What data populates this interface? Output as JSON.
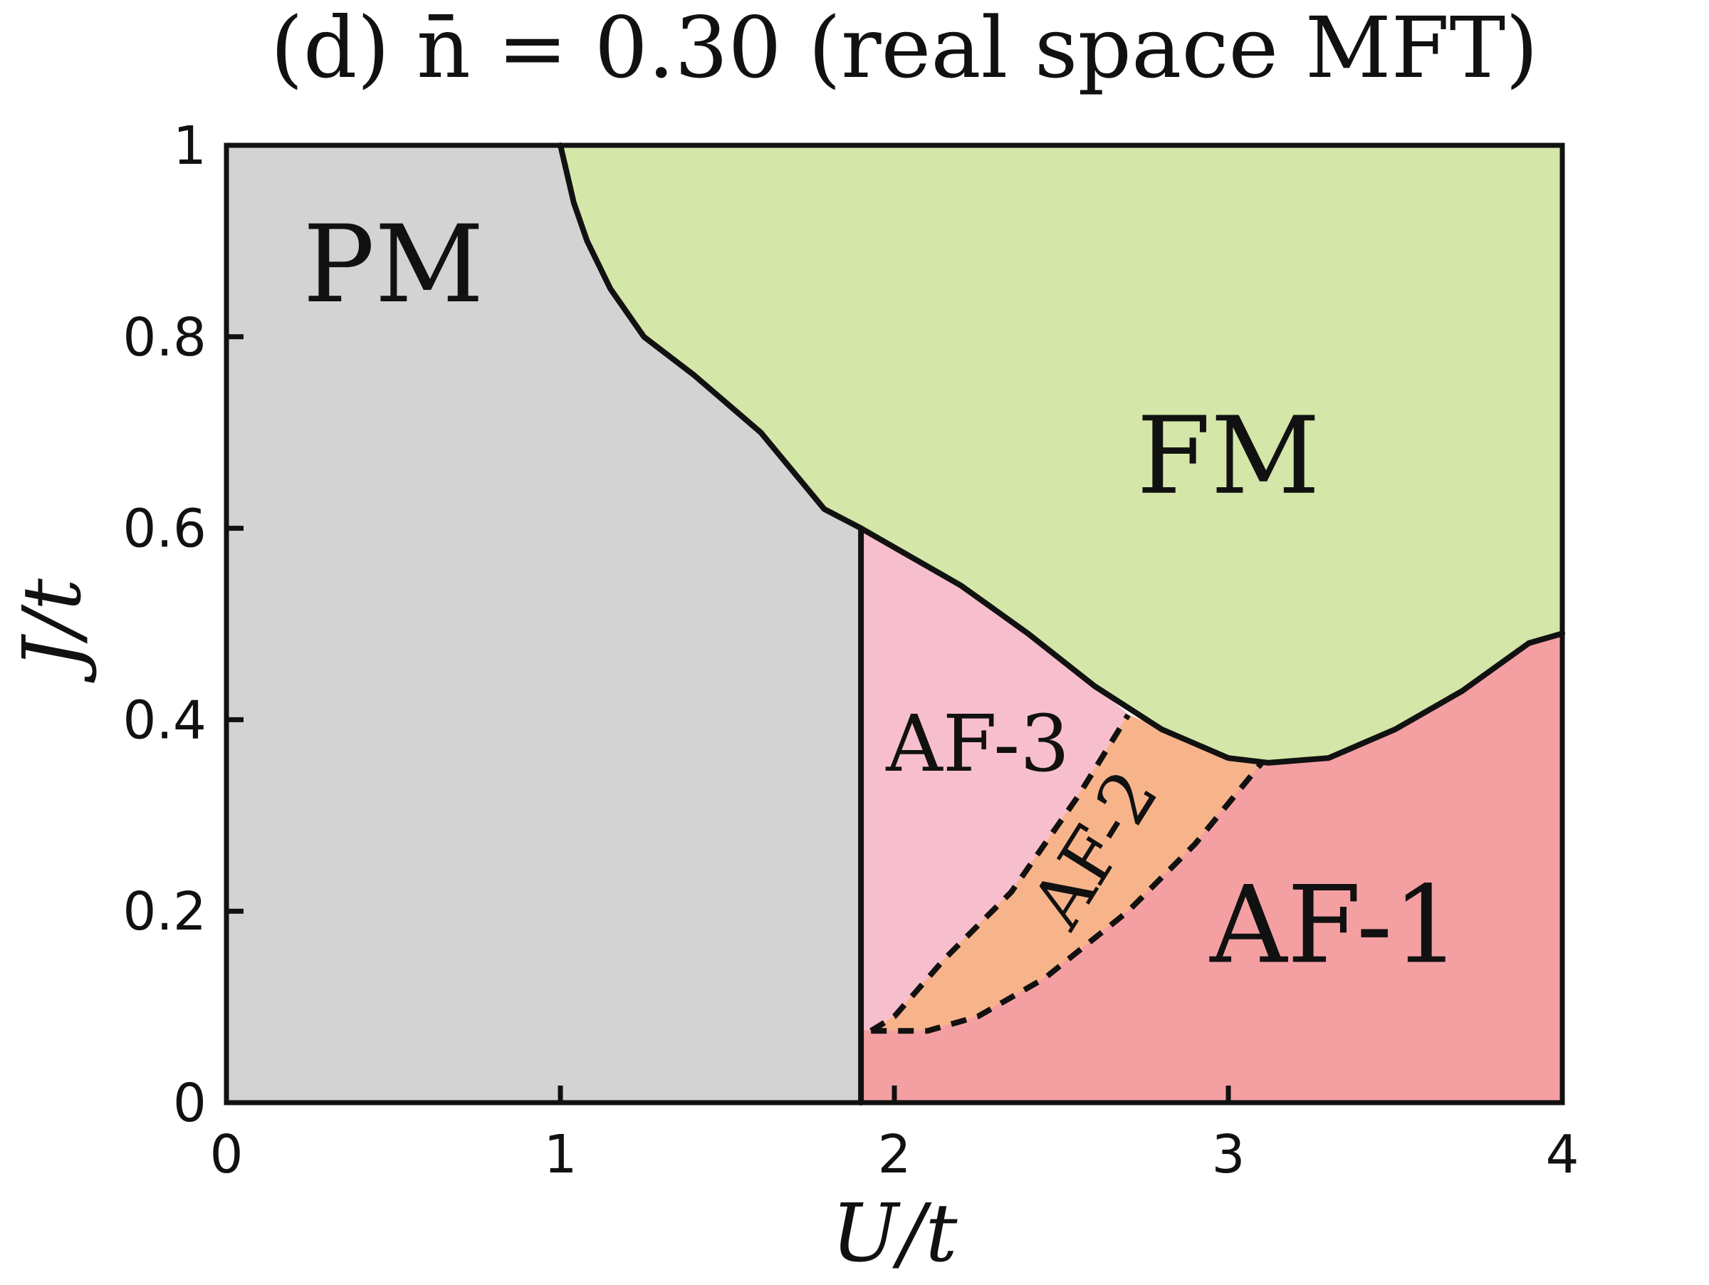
{
  "chart_data": {
    "type": "area",
    "title": "(d) n̄ = 0.30 (real space MFT)",
    "xlabel": "U/t",
    "ylabel": "J/t",
    "xlim": [
      0,
      4
    ],
    "ylim": [
      0,
      1
    ],
    "x_ticks": [
      "0",
      "1",
      "2",
      "3",
      "4"
    ],
    "y_ticks": [
      "0",
      "0.2",
      "0.4",
      "0.6",
      "0.8",
      "1"
    ],
    "x_tick_values": [
      0,
      1,
      2,
      3,
      4
    ],
    "y_tick_values": [
      0,
      0.2,
      0.4,
      0.6,
      0.8,
      1
    ],
    "colors": {
      "PM": "#d3d3d3",
      "FM": "#d4e6a8",
      "AF-3": "#f7bfcd",
      "AF-2": "#f7b48b",
      "AF-1": "#f4a0a3",
      "line": "#111111"
    },
    "regions": [
      {
        "label": "PM",
        "polygon": [
          [
            0,
            0
          ],
          [
            1.9,
            0
          ],
          [
            1.9,
            0.6
          ],
          [
            1.79,
            0.62
          ],
          [
            1.6,
            0.7
          ],
          [
            1.4,
            0.76
          ],
          [
            1.25,
            0.8
          ],
          [
            1.15,
            0.85
          ],
          [
            1.08,
            0.9
          ],
          [
            1.04,
            0.94
          ],
          [
            1.0,
            1.0
          ],
          [
            0,
            1
          ]
        ]
      },
      {
        "label": "FM",
        "polygon": [
          [
            1.0,
            1.0
          ],
          [
            4,
            1
          ],
          [
            4,
            0.49
          ],
          [
            3.9,
            0.48
          ],
          [
            3.7,
            0.43
          ],
          [
            3.5,
            0.39
          ],
          [
            3.3,
            0.36
          ],
          [
            3.12,
            0.355
          ],
          [
            3.0,
            0.36
          ],
          [
            2.8,
            0.39
          ],
          [
            2.6,
            0.435
          ],
          [
            2.4,
            0.49
          ],
          [
            2.2,
            0.54
          ],
          [
            2.0,
            0.58
          ],
          [
            1.9,
            0.6
          ],
          [
            1.79,
            0.62
          ],
          [
            1.6,
            0.7
          ],
          [
            1.4,
            0.76
          ],
          [
            1.25,
            0.8
          ],
          [
            1.15,
            0.85
          ],
          [
            1.08,
            0.9
          ],
          [
            1.04,
            0.94
          ]
        ]
      },
      {
        "label": "AF-3",
        "polygon": [
          [
            1.9,
            0.6
          ],
          [
            2.0,
            0.58
          ],
          [
            2.2,
            0.54
          ],
          [
            2.4,
            0.49
          ],
          [
            2.6,
            0.435
          ],
          [
            2.7,
            0.405
          ],
          [
            2.55,
            0.32
          ],
          [
            2.35,
            0.22
          ],
          [
            2.15,
            0.15
          ],
          [
            2.0,
            0.09
          ],
          [
            1.93,
            0.075
          ],
          [
            1.9,
            0.075
          ]
        ]
      },
      {
        "label": "AF-2",
        "polygon": [
          [
            2.7,
            0.405
          ],
          [
            2.8,
            0.39
          ],
          [
            3.0,
            0.36
          ],
          [
            3.1,
            0.355
          ],
          [
            2.9,
            0.27
          ],
          [
            2.7,
            0.2
          ],
          [
            2.45,
            0.13
          ],
          [
            2.25,
            0.09
          ],
          [
            2.1,
            0.075
          ],
          [
            1.93,
            0.075
          ],
          [
            2.0,
            0.09
          ],
          [
            2.15,
            0.15
          ],
          [
            2.35,
            0.22
          ],
          [
            2.55,
            0.32
          ]
        ]
      },
      {
        "label": "AF-1",
        "polygon": [
          [
            1.9,
            0
          ],
          [
            4,
            0
          ],
          [
            4,
            0.49
          ],
          [
            3.9,
            0.48
          ],
          [
            3.7,
            0.43
          ],
          [
            3.5,
            0.39
          ],
          [
            3.3,
            0.36
          ],
          [
            3.1,
            0.355
          ],
          [
            2.9,
            0.27
          ],
          [
            2.7,
            0.2
          ],
          [
            2.45,
            0.13
          ],
          [
            2.25,
            0.09
          ],
          [
            2.1,
            0.075
          ],
          [
            1.93,
            0.075
          ],
          [
            1.9,
            0.075
          ]
        ]
      }
    ],
    "boundaries": [
      {
        "name": "PM-FM/AF-3 boundary",
        "style": "solid",
        "points": [
          [
            1.0,
            1.0
          ],
          [
            1.04,
            0.94
          ],
          [
            1.08,
            0.9
          ],
          [
            1.15,
            0.85
          ],
          [
            1.25,
            0.8
          ],
          [
            1.4,
            0.76
          ],
          [
            1.6,
            0.7
          ],
          [
            1.79,
            0.62
          ],
          [
            1.9,
            0.6
          ],
          [
            2.0,
            0.58
          ],
          [
            2.2,
            0.54
          ],
          [
            2.4,
            0.49
          ],
          [
            2.6,
            0.435
          ],
          [
            2.8,
            0.39
          ],
          [
            3.0,
            0.36
          ],
          [
            3.12,
            0.355
          ],
          [
            3.3,
            0.36
          ],
          [
            3.5,
            0.39
          ],
          [
            3.7,
            0.43
          ],
          [
            3.9,
            0.48
          ],
          [
            4.0,
            0.49
          ]
        ]
      },
      {
        "name": "PM vertical boundary",
        "style": "solid",
        "points": [
          [
            1.9,
            0
          ],
          [
            1.9,
            0.6
          ]
        ]
      },
      {
        "name": "AF-3/AF-2 boundary",
        "style": "dashed",
        "points": [
          [
            1.93,
            0.075
          ],
          [
            2.0,
            0.09
          ],
          [
            2.15,
            0.15
          ],
          [
            2.35,
            0.22
          ],
          [
            2.55,
            0.32
          ],
          [
            2.7,
            0.405
          ]
        ]
      },
      {
        "name": "AF-2/AF-1 boundary",
        "style": "dashed",
        "points": [
          [
            1.93,
            0.075
          ],
          [
            2.1,
            0.075
          ],
          [
            2.25,
            0.09
          ],
          [
            2.45,
            0.13
          ],
          [
            2.7,
            0.2
          ],
          [
            2.9,
            0.27
          ],
          [
            3.1,
            0.355
          ]
        ]
      }
    ],
    "labels": [
      {
        "text": "PM",
        "x": 0.5,
        "y": 0.875,
        "size": 150,
        "rotate": 0
      },
      {
        "text": "FM",
        "x": 3.0,
        "y": 0.675,
        "size": 150,
        "rotate": 0
      },
      {
        "text": "AF-3",
        "x": 2.25,
        "y": 0.375,
        "size": 110,
        "rotate": 0
      },
      {
        "text": "AF-2",
        "x": 2.6,
        "y": 0.265,
        "size": 100,
        "rotate": -58
      },
      {
        "text": "AF-1",
        "x": 3.32,
        "y": 0.185,
        "size": 150,
        "rotate": 0
      }
    ]
  }
}
